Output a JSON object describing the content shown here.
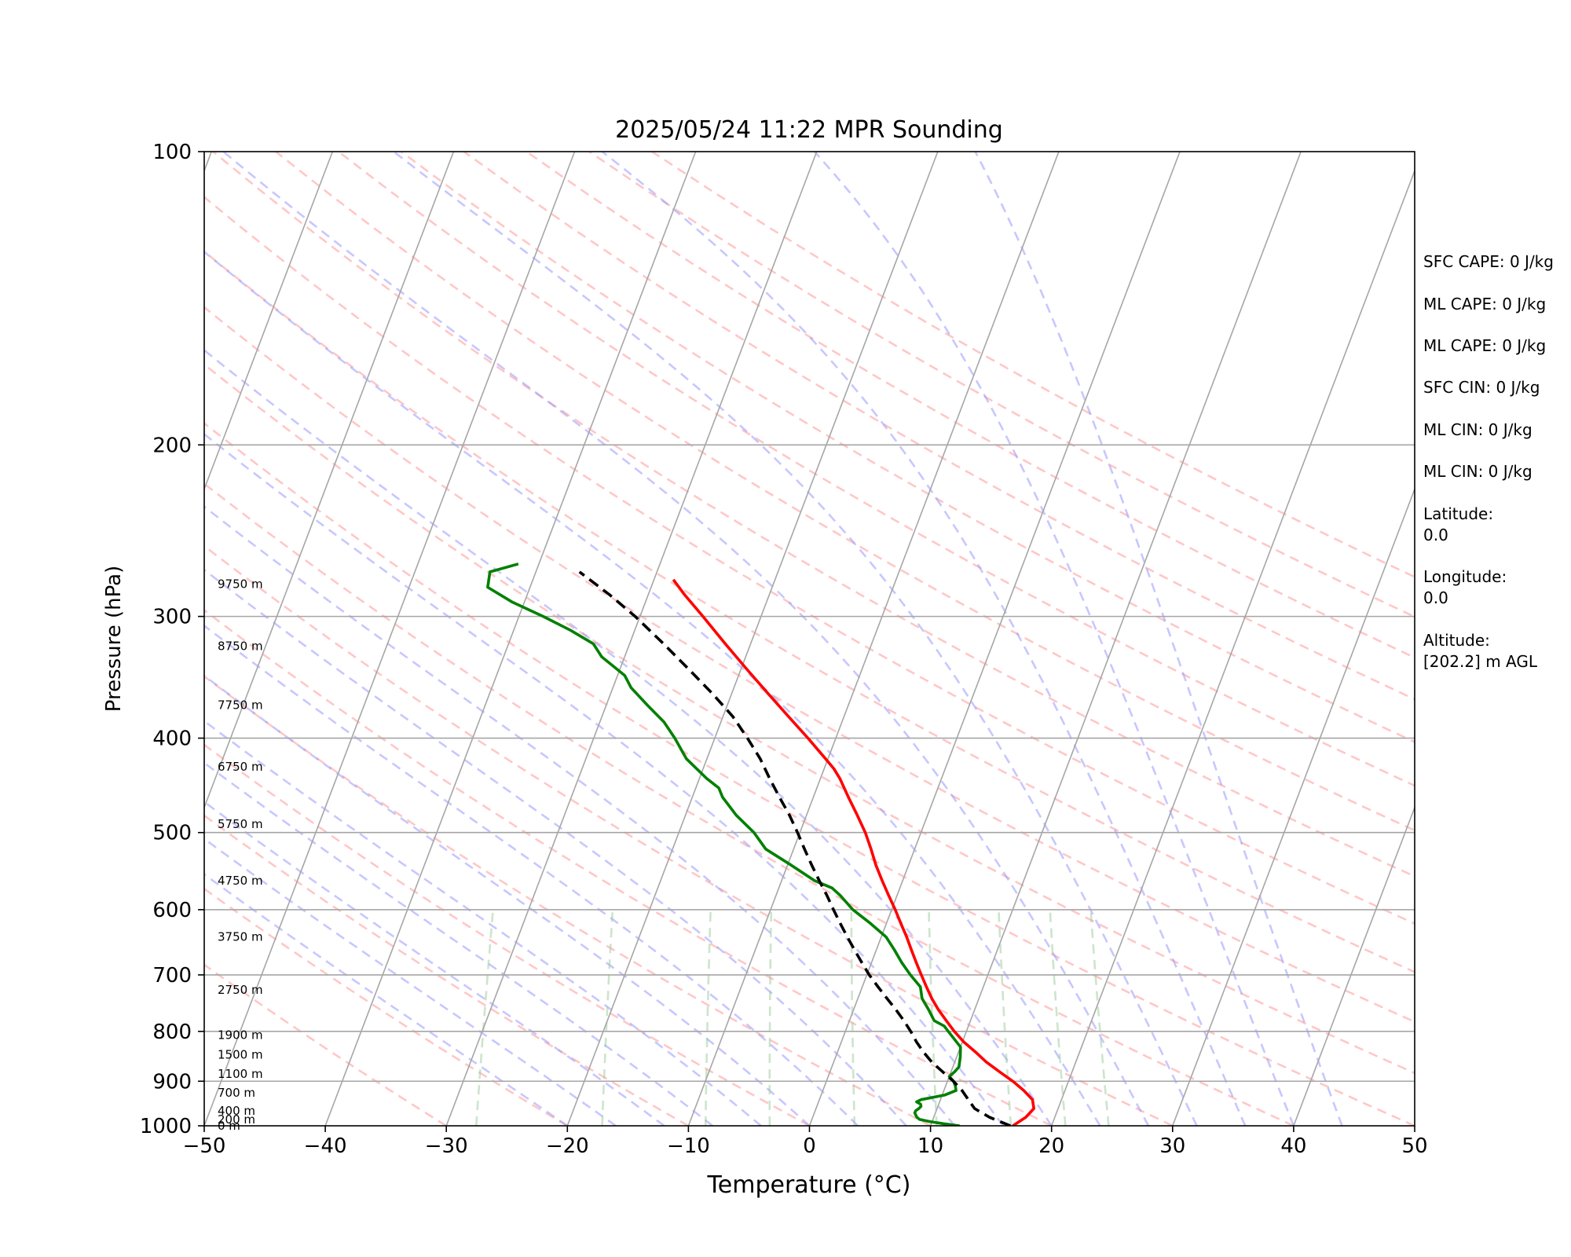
{
  "chart_data": {
    "type": "line",
    "title": "2025/05/24 11:22 MPR Sounding",
    "xlabel": "Temperature (°C)",
    "ylabel": "Pressure (hPa)",
    "xlim": [
      -50,
      50
    ],
    "ylim": [
      1000,
      100
    ],
    "y_scale": "log",
    "skew": true,
    "grid": true,
    "x_ticks": [
      "−50",
      "−40",
      "−30",
      "−20",
      "−10",
      "0",
      "10",
      "20",
      "30",
      "40",
      "50"
    ],
    "y_ticks": [
      "100",
      "200",
      "300",
      "400",
      "500",
      "600",
      "700",
      "800",
      "900",
      "1000"
    ],
    "height_labels": [
      {
        "p": 1000,
        "text": "0 m"
      },
      {
        "p": 985,
        "text": "200 m"
      },
      {
        "p": 965,
        "text": "400 m"
      },
      {
        "p": 925,
        "text": "700 m"
      },
      {
        "p": 885,
        "text": "1100 m"
      },
      {
        "p": 845,
        "text": "1500 m"
      },
      {
        "p": 807,
        "text": "1900 m"
      },
      {
        "p": 725,
        "text": "2750 m"
      },
      {
        "p": 640,
        "text": "3750 m"
      },
      {
        "p": 560,
        "text": "4750 m"
      },
      {
        "p": 490,
        "text": "5750 m"
      },
      {
        "p": 428,
        "text": "6750 m"
      },
      {
        "p": 370,
        "text": "7750 m"
      },
      {
        "p": 322,
        "text": "8750 m"
      },
      {
        "p": 278,
        "text": "9750 m"
      }
    ],
    "series": [
      {
        "color": "#ff0000",
        "style": "solid",
        "points": [
          [
            1000,
            16.8
          ],
          [
            980,
            17.6
          ],
          [
            960,
            18.0
          ],
          [
            940,
            17.6
          ],
          [
            920,
            16.6
          ],
          [
            900,
            15.4
          ],
          [
            880,
            14.0
          ],
          [
            860,
            12.6
          ],
          [
            840,
            11.4
          ],
          [
            820,
            10.1
          ],
          [
            800,
            9.0
          ],
          [
            780,
            8.0
          ],
          [
            760,
            7.0
          ],
          [
            740,
            6.1
          ],
          [
            720,
            5.3
          ],
          [
            700,
            4.5
          ],
          [
            680,
            3.7
          ],
          [
            660,
            2.9
          ],
          [
            640,
            2.1
          ],
          [
            620,
            1.2
          ],
          [
            600,
            0.3
          ],
          [
            580,
            -0.7
          ],
          [
            560,
            -1.7
          ],
          [
            540,
            -2.7
          ],
          [
            520,
            -3.6
          ],
          [
            500,
            -4.6
          ],
          [
            480,
            -5.8
          ],
          [
            460,
            -7.1
          ],
          [
            440,
            -8.4
          ],
          [
            430,
            -9.2
          ],
          [
            420,
            -10.2
          ],
          [
            400,
            -12.3
          ],
          [
            380,
            -14.6
          ],
          [
            360,
            -17.0
          ],
          [
            340,
            -19.5
          ],
          [
            320,
            -22.1
          ],
          [
            300,
            -24.8
          ],
          [
            285,
            -27.0
          ],
          [
            275,
            -28.4
          ]
        ]
      },
      {
        "color": "#008000",
        "style": "solid",
        "points": [
          [
            1000,
            12.4
          ],
          [
            995,
            11.0
          ],
          [
            990,
            9.8
          ],
          [
            985,
            8.9
          ],
          [
            980,
            8.6
          ],
          [
            970,
            8.3
          ],
          [
            965,
            8.3
          ],
          [
            960,
            8.5
          ],
          [
            955,
            8.6
          ],
          [
            950,
            8.5
          ],
          [
            945,
            8.1
          ],
          [
            940,
            8.4
          ],
          [
            930,
            10.2
          ],
          [
            920,
            11.0
          ],
          [
            910,
            10.8
          ],
          [
            900,
            10.5
          ],
          [
            890,
            10.0
          ],
          [
            880,
            10.3
          ],
          [
            870,
            10.5
          ],
          [
            850,
            10.3
          ],
          [
            830,
            10.0
          ],
          [
            800,
            8.5
          ],
          [
            790,
            8.0
          ],
          [
            780,
            7.0
          ],
          [
            760,
            6.2
          ],
          [
            740,
            5.3
          ],
          [
            720,
            4.8
          ],
          [
            700,
            3.6
          ],
          [
            680,
            2.5
          ],
          [
            660,
            1.5
          ],
          [
            640,
            0.4
          ],
          [
            620,
            -1.3
          ],
          [
            600,
            -3.2
          ],
          [
            580,
            -4.7
          ],
          [
            570,
            -5.6
          ],
          [
            560,
            -7.3
          ],
          [
            540,
            -9.7
          ],
          [
            520,
            -12.3
          ],
          [
            500,
            -13.8
          ],
          [
            480,
            -15.8
          ],
          [
            460,
            -17.5
          ],
          [
            450,
            -18.1
          ],
          [
            440,
            -19.4
          ],
          [
            420,
            -21.7
          ],
          [
            400,
            -23.3
          ],
          [
            385,
            -24.7
          ],
          [
            370,
            -26.6
          ],
          [
            355,
            -28.5
          ],
          [
            345,
            -29.4
          ],
          [
            330,
            -31.9
          ],
          [
            320,
            -33.0
          ],
          [
            310,
            -35.3
          ],
          [
            300,
            -38.0
          ],
          [
            290,
            -41.0
          ],
          [
            280,
            -43.5
          ],
          [
            270,
            -43.8
          ],
          [
            265,
            -41.7
          ]
        ]
      },
      {
        "color": "#000000",
        "style": "dashed",
        "points": [
          [
            1000,
            16.6
          ],
          [
            980,
            14.6
          ],
          [
            960,
            13.1
          ],
          [
            940,
            12.3
          ],
          [
            920,
            11.5
          ],
          [
            900,
            10.5
          ],
          [
            880,
            9.3
          ],
          [
            860,
            8.1
          ],
          [
            840,
            7.1
          ],
          [
            820,
            6.2
          ],
          [
            800,
            5.4
          ],
          [
            780,
            4.5
          ],
          [
            760,
            3.5
          ],
          [
            740,
            2.4
          ],
          [
            720,
            1.3
          ],
          [
            700,
            0.2
          ],
          [
            680,
            -0.8
          ],
          [
            660,
            -1.8
          ],
          [
            640,
            -2.8
          ],
          [
            620,
            -3.8
          ],
          [
            600,
            -4.8
          ],
          [
            580,
            -5.8
          ],
          [
            560,
            -6.9
          ],
          [
            540,
            -8.0
          ],
          [
            520,
            -9.1
          ],
          [
            500,
            -10.2
          ],
          [
            480,
            -11.4
          ],
          [
            460,
            -12.8
          ],
          [
            440,
            -14.2
          ],
          [
            420,
            -15.6
          ],
          [
            400,
            -17.3
          ],
          [
            380,
            -19.2
          ],
          [
            360,
            -21.6
          ],
          [
            340,
            -24.3
          ],
          [
            320,
            -27.2
          ],
          [
            300,
            -30.4
          ],
          [
            285,
            -33.2
          ],
          [
            270,
            -36.4
          ]
        ]
      }
    ],
    "side_info": [
      "SFC CAPE: 0 J/kg",
      "ML CAPE: 0 J/kg",
      "ML CAPE: 0 J/kg",
      "SFC CIN: 0 J/kg",
      "ML CIN: 0 J/kg",
      "ML CIN: 0 J/kg",
      "Latitude:",
      "0.0",
      "Longitude:",
      "0.0",
      "Altitude:",
      "[202.2] m AGL"
    ],
    "colors": {
      "isotherm": "#a6a6a6",
      "isobar": "#a6a6a6",
      "dry_adiabat": "#ff9999",
      "moist_adiabat": "#9999ff",
      "mixing_ratio": "#99cc99"
    }
  }
}
